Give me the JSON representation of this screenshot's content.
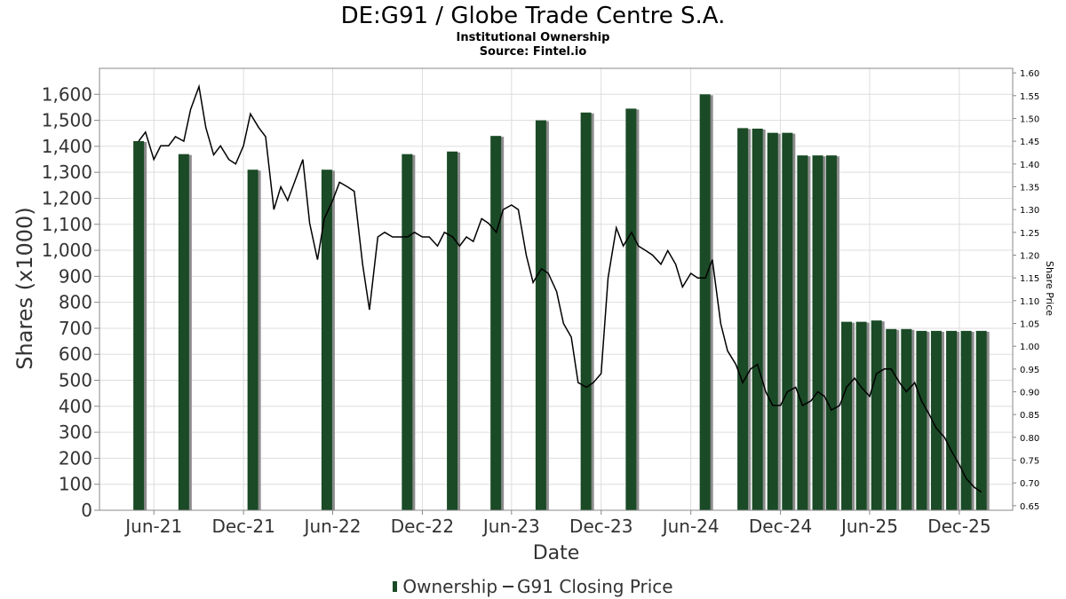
{
  "title": "DE:G91 / Globe Trade Centre S.A.",
  "subtitle": "Institutional Ownership",
  "source": "Source: Fintel.io",
  "legend": {
    "bars": "Ownership",
    "line": "G91 Closing Price"
  },
  "colors": {
    "bar": "#1a4a26",
    "bar_shadow": "#8c8c8c",
    "line": "#000000",
    "grid": "#dddddd"
  },
  "chart_data": {
    "type": "bar",
    "xlabel": "Date",
    "ylabel": "Shares (x1000)",
    "y2label": "Share Price",
    "x_ticks": [
      "Jun-21",
      "Dec-21",
      "Jun-22",
      "Dec-22",
      "Jun-23",
      "Dec-23",
      "Jun-24",
      "Dec-24",
      "Jun-25",
      "Dec-25"
    ],
    "y_ticks": [
      "0",
      "100",
      "200",
      "300",
      "400",
      "500",
      "600",
      "700",
      "800",
      "900",
      "1,000",
      "1,100",
      "1,200",
      "1,300",
      "1,400",
      "1,500",
      "1,600"
    ],
    "y2_ticks": [
      "0.65",
      "0.70",
      "0.75",
      "0.80",
      "0.85",
      "0.90",
      "0.95",
      "1.00",
      "1.05",
      "1.10",
      "1.15",
      "1.20",
      "1.25",
      "1.30",
      "1.35",
      "1.40",
      "1.45",
      "1.50",
      "1.55",
      "1.60"
    ],
    "ylim": [
      0,
      1700
    ],
    "y2lim": [
      0.64,
      1.61
    ],
    "xlim": [
      "2021-02-10",
      "2026-03-20"
    ],
    "grid": true,
    "legend_position": "bottom",
    "series": [
      {
        "name": "Ownership",
        "type": "bar",
        "axis": "left",
        "x": [
          "2021-05-01",
          "2021-08-01",
          "2021-12-20",
          "2022-05-20",
          "2022-10-31",
          "2023-01-31",
          "2023-04-30",
          "2023-07-31",
          "2023-10-31",
          "2024-01-31",
          "2024-06-30",
          "2024-09-15",
          "2024-10-15",
          "2024-11-15",
          "2024-12-15",
          "2025-01-15",
          "2025-02-15",
          "2025-03-15",
          "2025-04-15",
          "2025-05-15",
          "2025-06-15",
          "2025-07-15",
          "2025-08-15",
          "2025-09-15",
          "2025-10-15",
          "2025-11-15",
          "2025-12-15",
          "2026-01-15"
        ],
        "values": [
          1420,
          1370,
          1310,
          1310,
          1370,
          1380,
          1440,
          1500,
          1530,
          1545,
          1600,
          1470,
          1468,
          1452,
          1452,
          1365,
          1365,
          1365,
          725,
          725,
          730,
          697,
          697,
          690,
          690,
          690,
          690,
          690
        ]
      },
      {
        "name": "G91 Closing Price",
        "type": "line",
        "axis": "right",
        "x": [
          "2021-05-01",
          "2021-05-15",
          "2021-06-01",
          "2021-06-15",
          "2021-07-01",
          "2021-07-15",
          "2021-08-01",
          "2021-08-15",
          "2021-09-01",
          "2021-09-15",
          "2021-10-01",
          "2021-10-15",
          "2021-11-01",
          "2021-11-15",
          "2021-12-01",
          "2021-12-15",
          "2022-01-01",
          "2022-01-15",
          "2022-02-01",
          "2022-02-15",
          "2022-03-01",
          "2022-03-15",
          "2022-04-01",
          "2022-04-15",
          "2022-05-01",
          "2022-05-15",
          "2022-06-01",
          "2022-06-15",
          "2022-07-01",
          "2022-07-15",
          "2022-08-01",
          "2022-08-15",
          "2022-09-01",
          "2022-09-15",
          "2022-10-01",
          "2022-10-15",
          "2022-11-01",
          "2022-11-15",
          "2022-12-01",
          "2022-12-15",
          "2023-01-01",
          "2023-01-15",
          "2023-02-01",
          "2023-02-15",
          "2023-03-01",
          "2023-03-15",
          "2023-04-01",
          "2023-04-15",
          "2023-05-01",
          "2023-05-15",
          "2023-06-01",
          "2023-06-15",
          "2023-07-01",
          "2023-07-15",
          "2023-08-01",
          "2023-08-15",
          "2023-09-01",
          "2023-09-15",
          "2023-10-01",
          "2023-10-15",
          "2023-11-01",
          "2023-11-15",
          "2023-12-01",
          "2023-12-15",
          "2024-01-01",
          "2024-01-15",
          "2024-02-01",
          "2024-02-15",
          "2024-03-01",
          "2024-03-15",
          "2024-04-01",
          "2024-04-15",
          "2024-05-01",
          "2024-05-15",
          "2024-06-01",
          "2024-06-15",
          "2024-07-01",
          "2024-07-15",
          "2024-08-01",
          "2024-08-15",
          "2024-09-01",
          "2024-09-15",
          "2024-10-01",
          "2024-10-15",
          "2024-11-01",
          "2024-11-15",
          "2024-12-01",
          "2024-12-15",
          "2025-01-01",
          "2025-01-15",
          "2025-02-01",
          "2025-02-15",
          "2025-03-01",
          "2025-03-15",
          "2025-04-01",
          "2025-04-15",
          "2025-05-01",
          "2025-05-15",
          "2025-06-01",
          "2025-06-15",
          "2025-07-01",
          "2025-07-15",
          "2025-08-01",
          "2025-08-15",
          "2025-09-01",
          "2025-09-15",
          "2025-10-01",
          "2025-10-15",
          "2025-11-01",
          "2025-11-15",
          "2025-12-01",
          "2025-12-15",
          "2026-01-01",
          "2026-01-15"
        ],
        "values": [
          1.45,
          1.47,
          1.41,
          1.44,
          1.44,
          1.46,
          1.45,
          1.52,
          1.57,
          1.48,
          1.42,
          1.44,
          1.41,
          1.4,
          1.44,
          1.51,
          1.48,
          1.46,
          1.3,
          1.35,
          1.32,
          1.36,
          1.41,
          1.27,
          1.19,
          1.28,
          1.32,
          1.36,
          1.35,
          1.34,
          1.18,
          1.08,
          1.24,
          1.25,
          1.24,
          1.24,
          1.24,
          1.25,
          1.24,
          1.24,
          1.22,
          1.25,
          1.24,
          1.22,
          1.24,
          1.23,
          1.28,
          1.27,
          1.25,
          1.3,
          1.31,
          1.3,
          1.2,
          1.14,
          1.17,
          1.16,
          1.12,
          1.05,
          1.02,
          0.92,
          0.91,
          0.92,
          0.94,
          1.15,
          1.26,
          1.22,
          1.25,
          1.22,
          1.21,
          1.2,
          1.18,
          1.21,
          1.18,
          1.13,
          1.16,
          1.15,
          1.15,
          1.19,
          1.05,
          0.99,
          0.96,
          0.92,
          0.95,
          0.96,
          0.9,
          0.87,
          0.87,
          0.9,
          0.91,
          0.87,
          0.88,
          0.9,
          0.89,
          0.86,
          0.87,
          0.91,
          0.93,
          0.91,
          0.89,
          0.94,
          0.95,
          0.95,
          0.92,
          0.9,
          0.92,
          0.88,
          0.85,
          0.82,
          0.8,
          0.77,
          0.74,
          0.71,
          0.69,
          0.68
        ]
      }
    ]
  }
}
